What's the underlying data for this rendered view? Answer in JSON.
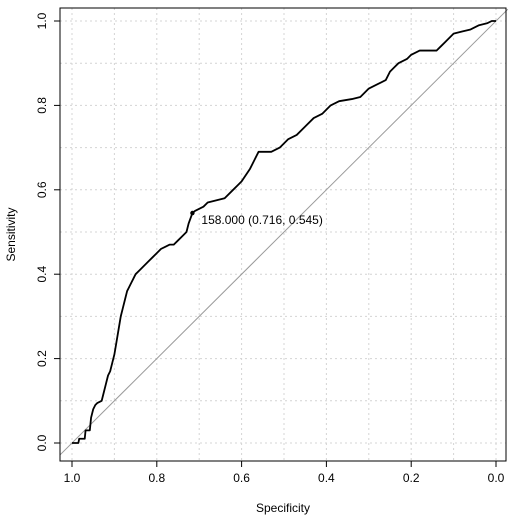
{
  "chart_data": {
    "type": "line",
    "title": "",
    "xlabel": "Specificity",
    "ylabel": "Sensitivity",
    "x_axis": {
      "reversed": true,
      "range": [
        1.0,
        0.0
      ],
      "ticks": [
        1.0,
        0.8,
        0.6,
        0.4,
        0.2,
        0.0
      ],
      "tick_labels": [
        "1.0",
        "0.8",
        "0.6",
        "0.4",
        "0.2",
        "0.0"
      ]
    },
    "y_axis": {
      "range": [
        0.0,
        1.0
      ],
      "ticks": [
        0.0,
        0.2,
        0.4,
        0.6,
        0.8,
        1.0
      ],
      "tick_labels": [
        "0.0",
        "0.2",
        "0.4",
        "0.6",
        "0.8",
        "1.0"
      ]
    },
    "grid": true,
    "reference_line": {
      "from": [
        1.0,
        0.0
      ],
      "to": [
        0.0,
        1.0
      ],
      "color": "#9a9a9a"
    },
    "series": [
      {
        "color": "#000000",
        "points": [
          [
            1.0,
            0.0
          ],
          [
            0.985,
            0.0
          ],
          [
            0.983,
            0.01
          ],
          [
            0.97,
            0.01
          ],
          [
            0.968,
            0.03
          ],
          [
            0.958,
            0.03
          ],
          [
            0.955,
            0.06
          ],
          [
            0.95,
            0.08
          ],
          [
            0.945,
            0.09
          ],
          [
            0.94,
            0.095
          ],
          [
            0.93,
            0.1
          ],
          [
            0.925,
            0.12
          ],
          [
            0.92,
            0.14
          ],
          [
            0.915,
            0.16
          ],
          [
            0.91,
            0.17
          ],
          [
            0.905,
            0.19
          ],
          [
            0.9,
            0.21
          ],
          [
            0.895,
            0.24
          ],
          [
            0.89,
            0.27
          ],
          [
            0.885,
            0.3
          ],
          [
            0.88,
            0.32
          ],
          [
            0.875,
            0.34
          ],
          [
            0.87,
            0.36
          ],
          [
            0.865,
            0.37
          ],
          [
            0.86,
            0.38
          ],
          [
            0.855,
            0.39
          ],
          [
            0.85,
            0.4
          ],
          [
            0.84,
            0.41
          ],
          [
            0.83,
            0.42
          ],
          [
            0.82,
            0.43
          ],
          [
            0.81,
            0.44
          ],
          [
            0.8,
            0.45
          ],
          [
            0.79,
            0.46
          ],
          [
            0.78,
            0.465
          ],
          [
            0.77,
            0.47
          ],
          [
            0.76,
            0.47
          ],
          [
            0.75,
            0.48
          ],
          [
            0.74,
            0.49
          ],
          [
            0.73,
            0.5
          ],
          [
            0.725,
            0.52
          ],
          [
            0.716,
            0.545
          ],
          [
            0.71,
            0.55
          ],
          [
            0.7,
            0.555
          ],
          [
            0.69,
            0.56
          ],
          [
            0.68,
            0.57
          ],
          [
            0.66,
            0.575
          ],
          [
            0.64,
            0.58
          ],
          [
            0.62,
            0.6
          ],
          [
            0.61,
            0.61
          ],
          [
            0.6,
            0.62
          ],
          [
            0.58,
            0.65
          ],
          [
            0.57,
            0.67
          ],
          [
            0.56,
            0.69
          ],
          [
            0.55,
            0.69
          ],
          [
            0.53,
            0.69
          ],
          [
            0.51,
            0.7
          ],
          [
            0.49,
            0.72
          ],
          [
            0.47,
            0.73
          ],
          [
            0.45,
            0.75
          ],
          [
            0.43,
            0.77
          ],
          [
            0.41,
            0.78
          ],
          [
            0.39,
            0.8
          ],
          [
            0.37,
            0.81
          ],
          [
            0.34,
            0.815
          ],
          [
            0.32,
            0.82
          ],
          [
            0.3,
            0.84
          ],
          [
            0.28,
            0.85
          ],
          [
            0.26,
            0.86
          ],
          [
            0.25,
            0.88
          ],
          [
            0.24,
            0.89
          ],
          [
            0.23,
            0.9
          ],
          [
            0.21,
            0.91
          ],
          [
            0.2,
            0.92
          ],
          [
            0.18,
            0.93
          ],
          [
            0.16,
            0.93
          ],
          [
            0.14,
            0.93
          ],
          [
            0.13,
            0.94
          ],
          [
            0.12,
            0.95
          ],
          [
            0.11,
            0.96
          ],
          [
            0.1,
            0.97
          ],
          [
            0.08,
            0.975
          ],
          [
            0.06,
            0.98
          ],
          [
            0.04,
            0.99
          ],
          [
            0.02,
            0.995
          ],
          [
            0.01,
            1.0
          ],
          [
            0.0,
            1.0
          ]
        ]
      }
    ],
    "annotation": {
      "point": [
        0.716,
        0.545
      ],
      "text": "158.000 (0.716, 0.545)"
    }
  }
}
